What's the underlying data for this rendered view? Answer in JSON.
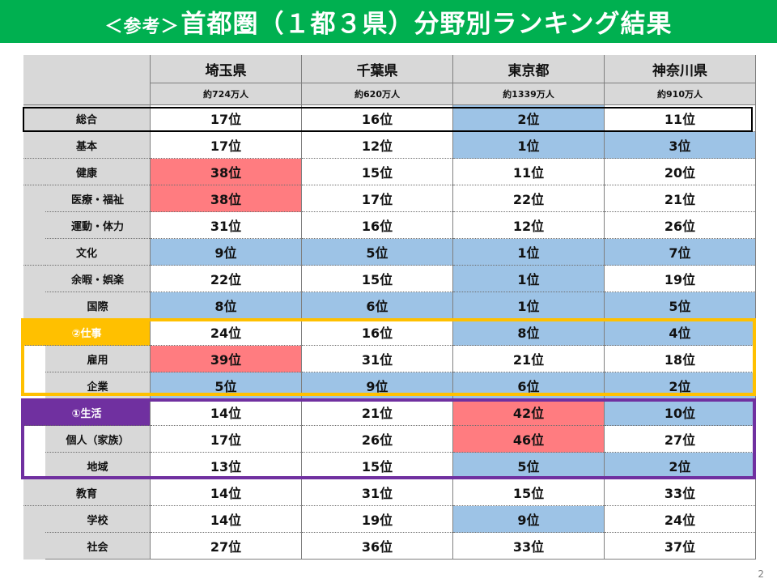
{
  "title": {
    "prefix": "＜参考＞",
    "main": "首都圏（１都３県）分野別ランキング結果"
  },
  "prefectures": [
    {
      "name": "埼玉県",
      "population": "約724万人"
    },
    {
      "name": "千葉県",
      "population": "約620万人"
    },
    {
      "name": "東京都",
      "population": "約1339万人"
    },
    {
      "name": "神奈川県",
      "population": "約910万人"
    }
  ],
  "rows": [
    {
      "label": "総合",
      "values": [
        "17位",
        "16位",
        "2位",
        "11位"
      ]
    },
    {
      "label": "基本",
      "values": [
        "17位",
        "12位",
        "1位",
        "3位"
      ]
    },
    {
      "label": "健康",
      "values": [
        "38位",
        "15位",
        "11位",
        "20位"
      ]
    },
    {
      "label": "医療・福祉",
      "values": [
        "38位",
        "17位",
        "22位",
        "21位"
      ]
    },
    {
      "label": "運動・体力",
      "values": [
        "31位",
        "16位",
        "12位",
        "26位"
      ]
    },
    {
      "label": "文化",
      "values": [
        "9位",
        "5位",
        "1位",
        "7位"
      ]
    },
    {
      "label": "余暇・娯楽",
      "values": [
        "22位",
        "15位",
        "1位",
        "19位"
      ]
    },
    {
      "label": "国際",
      "values": [
        "8位",
        "6位",
        "1位",
        "5位"
      ]
    },
    {
      "label": "②仕事",
      "values": [
        "24位",
        "16位",
        "8位",
        "4位"
      ]
    },
    {
      "label": "雇用",
      "values": [
        "39位",
        "31位",
        "21位",
        "18位"
      ]
    },
    {
      "label": "企業",
      "values": [
        "5位",
        "9位",
        "6位",
        "2位"
      ]
    },
    {
      "label": "①生活",
      "values": [
        "14位",
        "21位",
        "42位",
        "10位"
      ]
    },
    {
      "label": "個人（家族）",
      "values": [
        "17位",
        "26位",
        "46位",
        "27位"
      ]
    },
    {
      "label": "地域",
      "values": [
        "13位",
        "15位",
        "5位",
        "2位"
      ]
    },
    {
      "label": "教育",
      "values": [
        "14位",
        "31位",
        "15位",
        "33位"
      ]
    },
    {
      "label": "学校",
      "values": [
        "14位",
        "19位",
        "9位",
        "24位"
      ]
    },
    {
      "label": "社会",
      "values": [
        "27位",
        "36位",
        "33位",
        "37位"
      ]
    }
  ],
  "colors": {
    "title_bg": "#00b050",
    "high_rank": "#9dc3e6",
    "low_rank": "#ff7c80",
    "header_bg": "#d8d8d8",
    "highlight_work": "#ffc000",
    "highlight_life": "#7030a0"
  },
  "page_number": "2"
}
